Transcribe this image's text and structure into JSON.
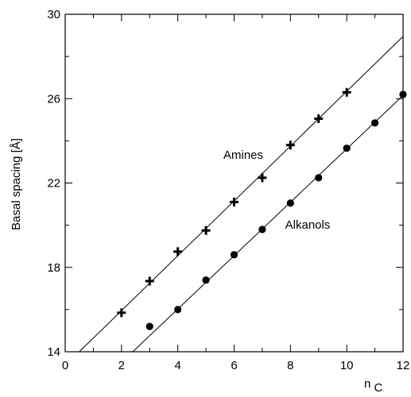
{
  "chart_data": {
    "type": "scatter",
    "title": "",
    "xlabel": "n",
    "xlabel_subscript": "C",
    "ylabel": "Basal spacing [Å]",
    "xlim": [
      0,
      12
    ],
    "ylim": [
      14,
      30
    ],
    "x_ticks": [
      0,
      2,
      4,
      6,
      8,
      10,
      12
    ],
    "x_tick_labels": [
      "0",
      "2",
      "4",
      "6",
      "8",
      "10",
      "12"
    ],
    "x_minor_step": 1,
    "y_ticks": [
      14,
      18,
      22,
      26,
      30
    ],
    "y_tick_labels": [
      "14",
      "18",
      "22",
      "26",
      "30"
    ],
    "y_minor_step": 2,
    "grid": false,
    "legend": "none",
    "series": [
      {
        "name": "Amines",
        "marker": "plus",
        "x": [
          2,
          3,
          4,
          5,
          6,
          7,
          8,
          9,
          10
        ],
        "y": [
          15.85,
          17.35,
          18.75,
          19.75,
          21.1,
          22.25,
          23.8,
          25.05,
          26.3
        ],
        "fit": {
          "x": [
            0.5,
            12
          ],
          "y": [
            14.0,
            28.95
          ]
        }
      },
      {
        "name": "Alkanols",
        "marker": "circle",
        "x": [
          3,
          4,
          5,
          6,
          7,
          8,
          9,
          10,
          11,
          12
        ],
        "y": [
          15.2,
          16.0,
          17.4,
          18.6,
          19.8,
          21.05,
          22.25,
          23.65,
          24.85,
          26.2
        ],
        "fit": {
          "x": [
            2.4,
            12
          ],
          "y": [
            14.0,
            26.15
          ]
        }
      }
    ],
    "annotations": [
      {
        "text": "Amines",
        "series": "Amines"
      },
      {
        "text": "Alkanols",
        "series": "Alkanols"
      }
    ]
  }
}
